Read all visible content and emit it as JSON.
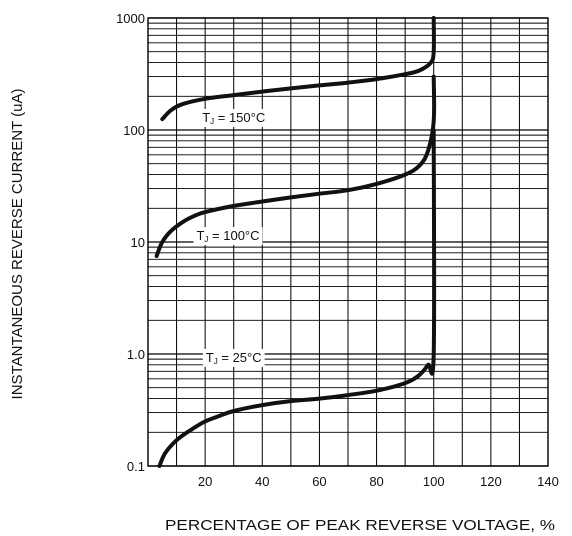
{
  "chart_data": {
    "type": "line",
    "title": "",
    "xlabel": "PERCENTAGE OF PEAK REVERSE VOLTAGE, %",
    "ylabel": "INSTANTANEOUS REVERSE CURRENT (uA)",
    "xlim": [
      0,
      140
    ],
    "ylim": [
      0.1,
      1000
    ],
    "y_scale": "log",
    "grid": true,
    "x_ticks": [
      20,
      40,
      60,
      80,
      100,
      120,
      140
    ],
    "x_tick_labels": [
      "20",
      "40",
      "60",
      "80",
      "100",
      "120",
      "140"
    ],
    "y_ticks": [
      0.1,
      1,
      10,
      100,
      1000
    ],
    "y_tick_labels": [
      "0.1",
      "1.0",
      "10",
      "100",
      "1000"
    ],
    "series": [
      {
        "name": "TJ = 150°C",
        "label_parts": {
          "T": "T",
          "sub": "J",
          "rest": " = 150°C"
        },
        "x": [
          5,
          8,
          12,
          20,
          30,
          40,
          50,
          60,
          70,
          80,
          90,
          95,
          99,
          100,
          100
        ],
        "y": [
          125,
          150,
          170,
          190,
          205,
          220,
          235,
          250,
          265,
          285,
          315,
          340,
          400,
          500,
          1000
        ]
      },
      {
        "name": "TJ = 100°C",
        "label_parts": {
          "T": "T",
          "sub": "J",
          "rest": " = 100°C"
        },
        "x": [
          3,
          5,
          8,
          12,
          16,
          20,
          30,
          40,
          50,
          60,
          70,
          80,
          90,
          95,
          98,
          100,
          100
        ],
        "y": [
          7.5,
          10,
          12.5,
          15,
          17,
          18.5,
          21,
          23,
          25,
          27,
          29,
          33,
          40,
          48,
          65,
          120,
          300
        ]
      },
      {
        "name": "TJ = 25°C",
        "label_parts": {
          "T": "T",
          "sub": "J",
          "rest": " = 25°C"
        },
        "x": [
          4,
          6,
          10,
          15,
          20,
          25,
          30,
          40,
          50,
          60,
          70,
          80,
          90,
          95,
          98,
          100,
          100
        ],
        "y": [
          0.1,
          0.13,
          0.17,
          0.21,
          0.25,
          0.28,
          0.31,
          0.35,
          0.38,
          0.4,
          0.43,
          0.47,
          0.55,
          0.65,
          0.8,
          1.0,
          100
        ]
      }
    ]
  }
}
